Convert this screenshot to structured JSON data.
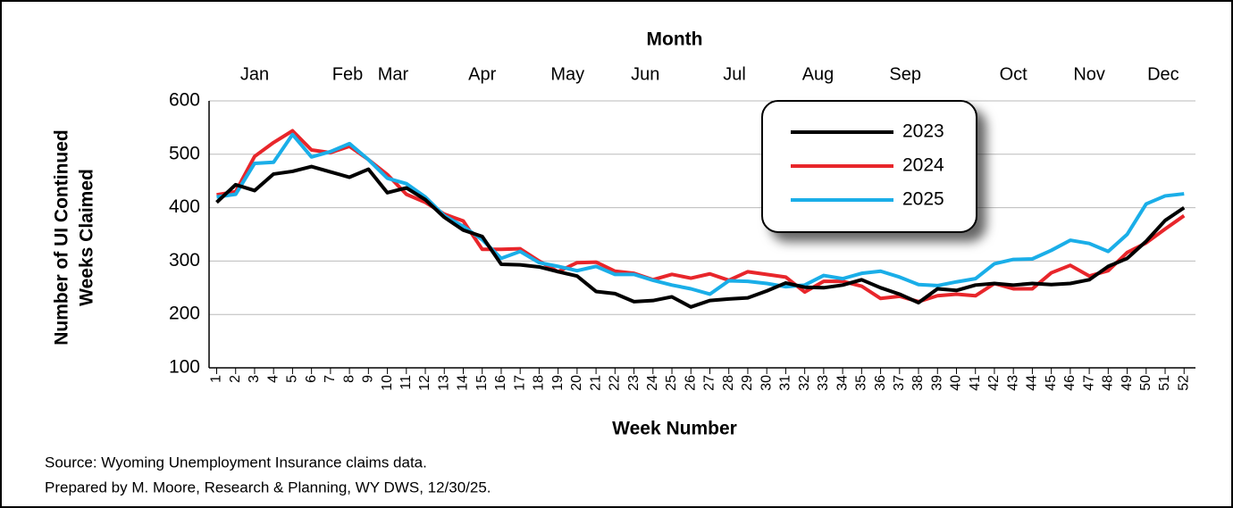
{
  "chart_data": {
    "type": "line",
    "x2label": "Month",
    "x2ticks": [
      {
        "value": 3,
        "label": "Jan"
      },
      {
        "value": 7.9,
        "label": "Feb"
      },
      {
        "value": 10.3,
        "label": "Mar"
      },
      {
        "value": 15,
        "label": "Apr"
      },
      {
        "value": 19.5,
        "label": "May"
      },
      {
        "value": 23.6,
        "label": "Jun"
      },
      {
        "value": 28.3,
        "label": "Jul"
      },
      {
        "value": 32.7,
        "label": "Aug"
      },
      {
        "value": 37.3,
        "label": "Sep"
      },
      {
        "value": 43,
        "label": "Oct"
      },
      {
        "value": 47,
        "label": "Nov"
      },
      {
        "value": 50.9,
        "label": "Dec"
      }
    ],
    "xlabel": "Week Number",
    "ylabel": [
      "Number of UI Continued",
      "Weeks Claimed"
    ],
    "x": [
      1,
      2,
      3,
      4,
      5,
      6,
      7,
      8,
      9,
      10,
      11,
      12,
      13,
      14,
      15,
      16,
      17,
      18,
      19,
      20,
      21,
      22,
      23,
      24,
      25,
      26,
      27,
      28,
      29,
      30,
      31,
      32,
      33,
      34,
      35,
      36,
      37,
      38,
      39,
      40,
      41,
      42,
      43,
      44,
      45,
      46,
      47,
      48,
      49,
      50,
      51,
      52
    ],
    "xlim": [
      0.6,
      52.6
    ],
    "ylim": [
      100,
      600
    ],
    "yticks": [
      100,
      200,
      300,
      400,
      500,
      600
    ],
    "grid": true,
    "legend": "upper right",
    "series": [
      {
        "name": "2023",
        "color": "#000000",
        "values": [
          410,
          443,
          432,
          463,
          468,
          477,
          467,
          457,
          472,
          428,
          437,
          415,
          382,
          358,
          346,
          294,
          293,
          289,
          280,
          272,
          243,
          239,
          224,
          226,
          233,
          214,
          226,
          229,
          231,
          244,
          259,
          251,
          250,
          255,
          265,
          250,
          238,
          222,
          248,
          245,
          255,
          258,
          255,
          258,
          256,
          258,
          265,
          290,
          305,
          337,
          376,
          400
        ]
      },
      {
        "name": "2024",
        "color": "#e8262b",
        "values": [
          424,
          430,
          496,
          522,
          544,
          508,
          503,
          515,
          490,
          462,
          425,
          410,
          388,
          375,
          322,
          322,
          323,
          300,
          280,
          297,
          298,
          281,
          277,
          265,
          275,
          268,
          276,
          264,
          280,
          275,
          270,
          242,
          262,
          262,
          253,
          230,
          234,
          224,
          235,
          238,
          235,
          258,
          248,
          248,
          278,
          292,
          272,
          282,
          316,
          334,
          360,
          385
        ]
      },
      {
        "name": "2025",
        "color": "#1aaee8",
        "values": [
          420,
          425,
          483,
          485,
          537,
          495,
          505,
          520,
          490,
          455,
          445,
          420,
          385,
          365,
          340,
          305,
          318,
          297,
          290,
          282,
          290,
          275,
          275,
          264,
          255,
          248,
          238,
          263,
          262,
          258,
          252,
          255,
          273,
          267,
          277,
          281,
          270,
          256,
          254,
          261,
          267,
          295,
          303,
          304,
          320,
          339,
          333,
          318,
          350,
          407,
          422,
          426
        ]
      }
    ],
    "notes": [
      "Source: Wyoming Unemployment Insurance claims data.",
      "Prepared by M. Moore, Research & Planning, WY DWS, 12/30/25."
    ]
  }
}
